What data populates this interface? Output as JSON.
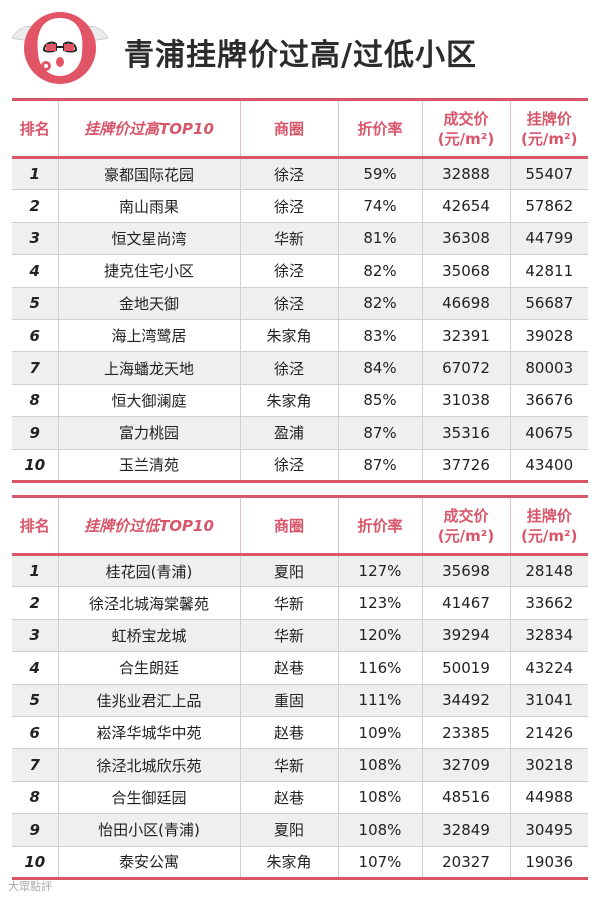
{
  "title": "青浦挂牌价过高/过低小区",
  "table_high": {
    "headers": [
      "排名",
      "挂牌价过高TOP10",
      "商圈",
      "折价率",
      "成交价\n(元/m²)",
      "挂牌价\n(元/m²)"
    ],
    "rows": [
      [
        "1",
        "豪都国际花园",
        "徐泾",
        "59%",
        "32888",
        "55407"
      ],
      [
        "2",
        "南山雨果",
        "徐泾",
        "74%",
        "42654",
        "57862"
      ],
      [
        "3",
        "恒文星尚湾",
        "华新",
        "81%",
        "36308",
        "44799"
      ],
      [
        "4",
        "捷克住宅小区",
        "徐泾",
        "82%",
        "35068",
        "42811"
      ],
      [
        "5",
        "金地天御",
        "徐泾",
        "82%",
        "46698",
        "56687"
      ],
      [
        "6",
        "海上湾鹭居",
        "朱家角",
        "83%",
        "32391",
        "39028"
      ],
      [
        "7",
        "上海蟠龙天地",
        "徐泾",
        "84%",
        "67072",
        "80003"
      ],
      [
        "8",
        "恒大御澜庭",
        "朱家角",
        "85%",
        "31038",
        "36676"
      ],
      [
        "9",
        "富力桃园",
        "盈浦",
        "87%",
        "35316",
        "40675"
      ],
      [
        "10",
        "玉兰清苑",
        "徐泾",
        "87%",
        "37726",
        "43400"
      ]
    ]
  },
  "table_low": {
    "headers": [
      "排名",
      "挂牌价过低TOP10",
      "商圈",
      "折价率",
      "成交价\n(元/m²)",
      "挂牌价\n(元/m²)"
    ],
    "rows": [
      [
        "1",
        "桂花园(青浦)",
        "夏阳",
        "127%",
        "35698",
        "28148"
      ],
      [
        "2",
        "徐泾北城海棠馨苑",
        "华新",
        "123%",
        "41467",
        "33662"
      ],
      [
        "3",
        "虹桥宝龙城",
        "华新",
        "120%",
        "39294",
        "32834"
      ],
      [
        "4",
        "合生朗廷",
        "赵巷",
        "116%",
        "50019",
        "43224"
      ],
      [
        "5",
        "佳兆业君汇上品",
        "重固",
        "111%",
        "34492",
        "31041"
      ],
      [
        "6",
        "崧泽华城华中苑",
        "赵巷",
        "109%",
        "23385",
        "21426"
      ],
      [
        "7",
        "徐泾北城欣乐苑",
        "华新",
        "108%",
        "32709",
        "30218"
      ],
      [
        "8",
        "合生御廷园",
        "赵巷",
        "108%",
        "48516",
        "44988"
      ],
      [
        "9",
        "怡田小区(青浦)",
        "夏阳",
        "108%",
        "32849",
        "30495"
      ],
      [
        "10",
        "泰安公寓",
        "朱家角",
        "107%",
        "20327",
        "19036"
      ]
    ]
  },
  "watermark": "大眾點評",
  "colors": {
    "accent": "#d9566a",
    "row_shade": "#efefef"
  },
  "icons": {
    "mascot": "ghost-mascot-icon"
  }
}
